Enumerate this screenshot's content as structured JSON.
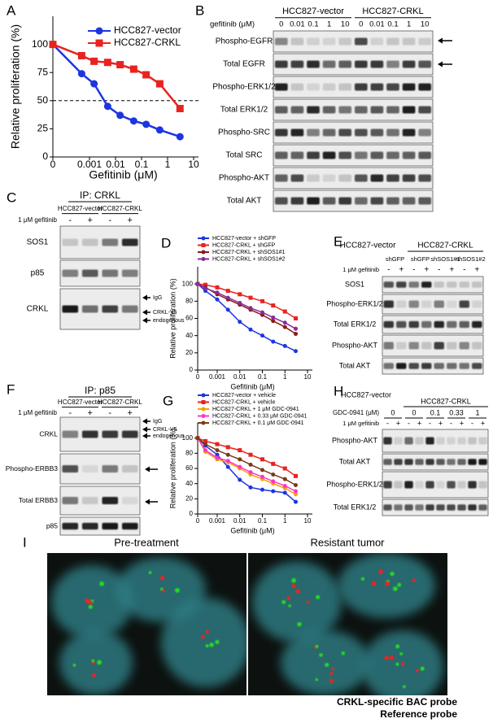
{
  "panel_letters": [
    "A",
    "B",
    "C",
    "D",
    "E",
    "F",
    "G",
    "H",
    "I"
  ],
  "chart_data": [
    {
      "type": "line",
      "xlabel": "Gefitinib (μM)",
      "ylabel": "Relative proliferation (%)",
      "x": [
        0,
        0.0005,
        0.0015,
        0.005,
        0.015,
        0.05,
        0.15,
        0.5,
        3
      ],
      "series": [
        {
          "name": "HCC827-vector",
          "color": "#1c35e0",
          "marker": "circle",
          "values": [
            100,
            74,
            65,
            45,
            37,
            32,
            29,
            24,
            18
          ]
        },
        {
          "name": "HCC827-CRKL",
          "color": "#e8231f",
          "marker": "square",
          "values": [
            100,
            90,
            85,
            84,
            82,
            78,
            73,
            65,
            43
          ]
        }
      ],
      "xlim": [
        0,
        10
      ],
      "xticks": [
        0,
        0.001,
        0.01,
        0.1,
        1,
        10
      ],
      "ylim": [
        0,
        125
      ],
      "yticks": [
        0,
        25,
        50,
        75,
        100
      ],
      "hline": 50,
      "legend": "upper right"
    },
    {
      "type": "line",
      "xlabel": "Gefitinib (μM)",
      "ylabel": "Relative proliferation (%)",
      "x": [
        0,
        0.0003,
        0.001,
        0.003,
        0.01,
        0.03,
        0.1,
        0.3,
        1,
        3
      ],
      "series": [
        {
          "name": "HCC827-vector + shGFP",
          "color": "#1c35e0",
          "marker": "circle",
          "values": [
            100,
            92,
            82,
            70,
            56,
            47,
            40,
            33,
            28,
            22
          ]
        },
        {
          "name": "HCC827-CRKL + shGFP",
          "color": "#e8231f",
          "marker": "square",
          "values": [
            100,
            99,
            96,
            92,
            88,
            84,
            80,
            75,
            68,
            60
          ]
        },
        {
          "name": "HCC827-CRKL + shSOS1#1",
          "color": "#8b1a1a",
          "marker": "circle",
          "values": [
            100,
            96,
            88,
            82,
            76,
            70,
            64,
            57,
            50,
            42
          ]
        },
        {
          "name": "HCC827-CRKL + shSOS1#2",
          "color": "#8a2a9a",
          "marker": "circle",
          "values": [
            100,
            95,
            90,
            84,
            78,
            72,
            67,
            61,
            55,
            48
          ]
        }
      ],
      "xlim": [
        0,
        10
      ],
      "xticks": [
        0,
        0.001,
        0.01,
        0.1,
        1,
        10
      ],
      "ylim": [
        0,
        120
      ],
      "yticks": [
        0,
        20,
        40,
        60,
        80,
        100
      ],
      "legend": "upper left"
    },
    {
      "type": "line",
      "xlabel": "Gefitinib (μM)",
      "ylabel": "Relative proliferation (%)",
      "x": [
        0,
        0.0003,
        0.001,
        0.003,
        0.01,
        0.03,
        0.1,
        0.3,
        1,
        3
      ],
      "series": [
        {
          "name": "HCC827-vector + vehicle",
          "color": "#1c35e0",
          "marker": "circle",
          "values": [
            100,
            90,
            78,
            62,
            45,
            35,
            32,
            30,
            28,
            16
          ]
        },
        {
          "name": "HCC827-CRKL + vehicle",
          "color": "#e8231f",
          "marker": "square",
          "values": [
            100,
            96,
            92,
            88,
            84,
            78,
            72,
            66,
            60,
            50
          ]
        },
        {
          "name": "HCC827-CRKL + 1 μM GDC-0941",
          "color": "#f5a000",
          "marker": "circle",
          "values": [
            100,
            82,
            72,
            68,
            60,
            52,
            46,
            40,
            34,
            26
          ]
        },
        {
          "name": "HCC827-CRKL + 0.33 μM GDC-0941",
          "color": "#ff33cc",
          "marker": "circle",
          "values": [
            100,
            84,
            74,
            70,
            62,
            55,
            49,
            43,
            37,
            30
          ]
        },
        {
          "name": "HCC827-CRKL + 0.1 μM GDC-0941",
          "color": "#7a3a1a",
          "marker": "circle",
          "values": [
            100,
            92,
            84,
            78,
            72,
            65,
            58,
            52,
            46,
            38
          ]
        }
      ],
      "xlim": [
        0,
        10
      ],
      "xticks": [
        0,
        0.001,
        0.01,
        0.1,
        1,
        10
      ],
      "ylim": [
        0,
        120
      ],
      "yticks": [
        0,
        20,
        40,
        60,
        80,
        100
      ],
      "legend": "upper left"
    }
  ],
  "blots": {
    "B": {
      "groups": [
        "HCC827-vector",
        "HCC827-CRKL"
      ],
      "treatment_label": "gefitinib (μM)",
      "treatments": [
        "0",
        "0.01",
        "0.1",
        "1",
        "10",
        "0",
        "0.01",
        "0.1",
        "1",
        "10"
      ],
      "rows": [
        "Phospho-EGFR",
        "Total EGFR",
        "Phospho-ERK1/2",
        "Total ERK1/2",
        "Phospho-SRC",
        "Total SRC",
        "Phospho-AKT",
        "Total AKT"
      ]
    },
    "C": {
      "title": "IP: CRKL",
      "groups": [
        "HCC827-vector",
        "HCC827-CRKL"
      ],
      "treatment_label": "1 μM gefitinib",
      "treatments": [
        "-",
        "+",
        "-",
        "+"
      ],
      "rows": [
        "SOS1",
        "p85",
        "CRKL"
      ],
      "markers": [
        "IgG",
        "CRKL-V5",
        "endogenous"
      ]
    },
    "E": {
      "groups": [
        "HCC827-vector",
        "HCC827-CRKL"
      ],
      "subgroups": [
        "shGFP",
        "shGFP",
        "shSOS1#1",
        "shSOS1#2"
      ],
      "treatment_label": "1 μM gefitinib",
      "treatments": [
        "-",
        "+",
        "-",
        "+",
        "-",
        "+",
        "-",
        "+"
      ],
      "rows": [
        "SOS1",
        "Phospho-ERK1/2",
        "Total ERK1/2",
        "Phospho-AKT",
        "Total AKT"
      ]
    },
    "F": {
      "title": "IP: p85",
      "groups": [
        "HCC827-vector",
        "HCC827-CRKL"
      ],
      "treatment_label": "1 μM gefitinib",
      "treatments": [
        "-",
        "+",
        "-",
        "+"
      ],
      "rows": [
        "CRKL",
        "Phospho-ERBB3",
        "Total ERBB3",
        "p85"
      ],
      "markers": [
        "IgG",
        "CRKL-V5",
        "endogenous"
      ]
    },
    "H": {
      "groups": [
        "HCC827-vector",
        "HCC827-CRKL"
      ],
      "dose_label": "GDC-0941 (μM)",
      "doses": [
        "0",
        "0",
        "0.1",
        "0.33",
        "1"
      ],
      "treatment_label": "1 μM gefitinib",
      "treatments": [
        "-",
        "+",
        "-",
        "+",
        "-",
        "+",
        "-",
        "+",
        "-",
        "+"
      ],
      "rows": [
        "Phospho-AKT",
        "Total AKT",
        "Phospho-ERK1/2",
        "Total ERK1/2"
      ]
    }
  },
  "fish": {
    "titles": [
      "Pre-treatment",
      "Resistant tumor"
    ],
    "legend": [
      {
        "label": "CRKL-specific BAC probe",
        "color": "#22dd22"
      },
      {
        "label": "Reference probe",
        "color": "#ee2222"
      }
    ]
  }
}
